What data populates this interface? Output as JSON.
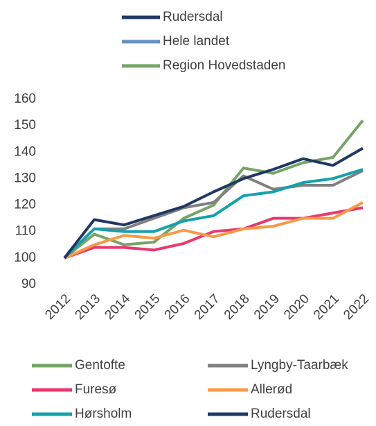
{
  "chart_data": {
    "type": "line",
    "top_legend": [
      {
        "name": "Rudersdal",
        "color": "#203864"
      },
      {
        "name": "Hele landet",
        "color": "#6a8fc6"
      },
      {
        "name": "Region Hovedstaden",
        "color": "#76a466"
      }
    ],
    "categories": [
      "2012",
      "2013",
      "2014",
      "2015",
      "2016",
      "2017",
      "2018",
      "2019",
      "2020",
      "2021",
      "2022"
    ],
    "series": [
      {
        "name": "Gentofte",
        "color": "#76a466",
        "values": [
          100,
          109,
          105,
          106,
          115,
          120,
          134,
          132,
          136,
          138,
          152
        ]
      },
      {
        "name": "Lyngby-Taarbæk",
        "color": "#808080",
        "values": [
          100,
          111,
          111,
          115,
          119,
          121,
          131,
          126,
          127.5,
          127.5,
          133
        ]
      },
      {
        "name": "Furesø",
        "color": "#e8386e",
        "values": [
          100,
          104,
          104,
          103,
          105.5,
          110,
          111,
          115,
          115,
          117,
          119
        ]
      },
      {
        "name": "Allerød",
        "color": "#f79a46",
        "values": [
          100,
          105,
          108.5,
          107.5,
          110.5,
          108,
          111,
          112,
          115,
          115,
          121
        ]
      },
      {
        "name": "Hørsholm",
        "color": "#12a2ac",
        "values": [
          100,
          111,
          110,
          110,
          114,
          116,
          123.5,
          125,
          128.5,
          130,
          133.5
        ]
      },
      {
        "name": "Rudersdal",
        "color": "#203864",
        "values": [
          100,
          114.5,
          112.5,
          116,
          119.5,
          125,
          130,
          133.5,
          137.5,
          135,
          141.5
        ]
      }
    ],
    "ylim": [
      90,
      160
    ],
    "yticks": [
      90,
      100,
      110,
      120,
      130,
      140,
      150,
      160
    ],
    "grid": false
  }
}
